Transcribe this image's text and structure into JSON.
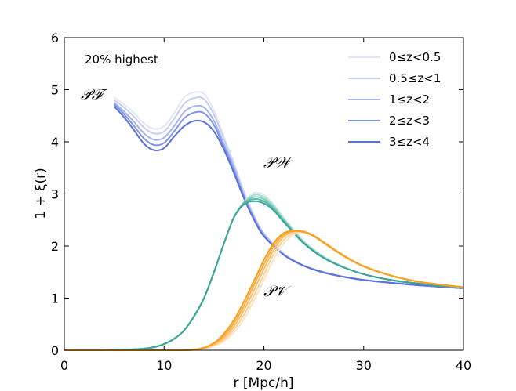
{
  "chart_data": {
    "type": "line",
    "xlabel": "r [Mpc/h]",
    "ylabel": "1 + ξ(r)",
    "xlim": [
      0,
      40
    ],
    "ylim": [
      0,
      6
    ],
    "x_ticks": [
      0,
      10,
      20,
      30,
      40
    ],
    "y_ticks": [
      0,
      1,
      2,
      3,
      4,
      5,
      6
    ],
    "annotation": "20% highest",
    "legend_position": "top-right",
    "legend": [
      {
        "label": "0≤z<0.5",
        "color": "#e3e7f7"
      },
      {
        "label": "0.5≤z<1",
        "color": "#c6cff1"
      },
      {
        "label": "1≤z<2",
        "color": "#a6b3ec"
      },
      {
        "label": "2≤z<3",
        "color": "#8195e5"
      },
      {
        "label": "3≤z<4",
        "color": "#5a70dc"
      }
    ],
    "curve_labels": [
      {
        "text": "𝒫ℱ",
        "color": "#6279db"
      },
      {
        "text": "𝒫𝒲",
        "color": "#3aa598"
      },
      {
        "text": "𝒫𝒱",
        "color": "#f6a11c"
      }
    ],
    "series": [
      {
        "name": "PF 0≤z<0.5",
        "group": "PF",
        "color": "#e3e7f7",
        "x": [
          5,
          6,
          7,
          8,
          9,
          10,
          11,
          12,
          13,
          14,
          15,
          16,
          17,
          18,
          19,
          20,
          22,
          24,
          26,
          28,
          30,
          33,
          36,
          40
        ],
        "y": [
          4.85,
          4.72,
          4.55,
          4.35,
          4.25,
          4.3,
          4.55,
          4.85,
          4.95,
          4.92,
          4.6,
          4.1,
          3.6,
          3.05,
          2.6,
          2.25,
          1.85,
          1.63,
          1.5,
          1.41,
          1.35,
          1.29,
          1.24,
          1.19
        ]
      },
      {
        "name": "PF 0.5≤z<1",
        "group": "PF",
        "color": "#c6cff1",
        "x": [
          5,
          6,
          7,
          8,
          9,
          10,
          11,
          12,
          13,
          14,
          15,
          16,
          17,
          18,
          19,
          20,
          22,
          24,
          26,
          28,
          30,
          33,
          36,
          40
        ],
        "y": [
          4.8,
          4.66,
          4.48,
          4.27,
          4.16,
          4.2,
          4.44,
          4.73,
          4.84,
          4.82,
          4.52,
          4.05,
          3.56,
          3.02,
          2.58,
          2.24,
          1.85,
          1.63,
          1.5,
          1.41,
          1.35,
          1.29,
          1.24,
          1.19
        ]
      },
      {
        "name": "PF 1≤z<2",
        "group": "PF",
        "color": "#a6b3ec",
        "x": [
          5,
          6,
          7,
          8,
          9,
          10,
          11,
          12,
          13,
          14,
          15,
          16,
          17,
          18,
          19,
          20,
          22,
          24,
          26,
          28,
          30,
          33,
          36,
          40
        ],
        "y": [
          4.75,
          4.58,
          4.38,
          4.16,
          4.04,
          4.08,
          4.3,
          4.57,
          4.68,
          4.66,
          4.4,
          3.96,
          3.5,
          2.98,
          2.55,
          2.22,
          1.84,
          1.62,
          1.5,
          1.41,
          1.35,
          1.29,
          1.24,
          1.19
        ]
      },
      {
        "name": "PF 2≤z<3",
        "group": "PF",
        "color": "#8195e5",
        "x": [
          5,
          6,
          7,
          8,
          9,
          10,
          11,
          12,
          13,
          14,
          15,
          16,
          17,
          18,
          19,
          20,
          22,
          24,
          26,
          28,
          30,
          33,
          36,
          40
        ],
        "y": [
          4.72,
          4.53,
          4.3,
          4.06,
          3.94,
          3.98,
          4.2,
          4.45,
          4.56,
          4.55,
          4.32,
          3.9,
          3.45,
          2.95,
          2.53,
          2.2,
          1.83,
          1.62,
          1.49,
          1.41,
          1.35,
          1.29,
          1.24,
          1.19
        ]
      },
      {
        "name": "PF 3≤z<4",
        "group": "PF",
        "color": "#5a70dc",
        "x": [
          5,
          6,
          7,
          8,
          9,
          10,
          11,
          12,
          13,
          14,
          15,
          16,
          17,
          18,
          19,
          20,
          22,
          24,
          26,
          28,
          30,
          33,
          36,
          40
        ],
        "y": [
          4.68,
          4.47,
          4.22,
          3.96,
          3.84,
          3.88,
          4.1,
          4.3,
          4.4,
          4.38,
          4.2,
          3.85,
          3.4,
          2.92,
          2.51,
          2.19,
          1.83,
          1.62,
          1.49,
          1.41,
          1.35,
          1.29,
          1.24,
          1.19
        ]
      },
      {
        "name": "PW 0≤z<0.5",
        "group": "PW",
        "color": "#d6eeeb",
        "x": [
          0,
          4,
          6,
          8,
          9,
          10,
          11,
          12,
          13,
          14,
          15,
          16,
          17,
          18,
          19,
          20,
          21,
          22,
          24,
          26,
          28,
          30,
          33,
          36,
          40
        ],
        "y": [
          0,
          0,
          0.01,
          0.03,
          0.06,
          0.12,
          0.22,
          0.38,
          0.65,
          1.0,
          1.5,
          2.05,
          2.55,
          2.85,
          3.02,
          2.98,
          2.8,
          2.55,
          2.1,
          1.8,
          1.6,
          1.46,
          1.34,
          1.27,
          1.2
        ]
      },
      {
        "name": "PW 0.5≤z<1",
        "group": "PW",
        "color": "#acdcd5",
        "x": [
          0,
          4,
          6,
          8,
          9,
          10,
          11,
          12,
          13,
          14,
          15,
          16,
          17,
          18,
          19,
          20,
          21,
          22,
          24,
          26,
          28,
          30,
          33,
          36,
          40
        ],
        "y": [
          0,
          0,
          0.01,
          0.03,
          0.06,
          0.12,
          0.22,
          0.38,
          0.65,
          1.0,
          1.5,
          2.05,
          2.55,
          2.84,
          2.98,
          2.94,
          2.77,
          2.52,
          2.08,
          1.79,
          1.6,
          1.46,
          1.34,
          1.27,
          1.2
        ]
      },
      {
        "name": "PW 1≤z<2",
        "group": "PW",
        "color": "#82cbc0",
        "x": [
          0,
          4,
          6,
          8,
          9,
          10,
          11,
          12,
          13,
          14,
          15,
          16,
          17,
          18,
          19,
          20,
          21,
          22,
          24,
          26,
          28,
          30,
          33,
          36,
          40
        ],
        "y": [
          0,
          0,
          0.01,
          0.03,
          0.06,
          0.12,
          0.22,
          0.38,
          0.65,
          1.0,
          1.5,
          2.05,
          2.55,
          2.83,
          2.94,
          2.9,
          2.74,
          2.5,
          2.07,
          1.78,
          1.59,
          1.46,
          1.34,
          1.27,
          1.2
        ]
      },
      {
        "name": "PW 2≤z<3",
        "group": "PW",
        "color": "#58b8aa",
        "x": [
          0,
          4,
          6,
          8,
          9,
          10,
          11,
          12,
          13,
          14,
          15,
          16,
          17,
          18,
          19,
          20,
          21,
          22,
          24,
          26,
          28,
          30,
          33,
          36,
          40
        ],
        "y": [
          0,
          0,
          0.01,
          0.03,
          0.06,
          0.12,
          0.22,
          0.38,
          0.65,
          1.0,
          1.5,
          2.05,
          2.55,
          2.82,
          2.9,
          2.86,
          2.71,
          2.48,
          2.06,
          1.77,
          1.59,
          1.46,
          1.34,
          1.27,
          1.2
        ]
      },
      {
        "name": "PW 3≤z<4",
        "group": "PW",
        "color": "#3aa598",
        "x": [
          0,
          4,
          6,
          8,
          9,
          10,
          11,
          12,
          13,
          14,
          15,
          16,
          17,
          18,
          19,
          20,
          21,
          22,
          24,
          26,
          28,
          30,
          33,
          36,
          40
        ],
        "y": [
          0,
          0,
          0.01,
          0.03,
          0.06,
          0.12,
          0.22,
          0.38,
          0.65,
          1.0,
          1.5,
          2.05,
          2.55,
          2.8,
          2.86,
          2.82,
          2.68,
          2.46,
          2.05,
          1.77,
          1.59,
          1.46,
          1.34,
          1.27,
          1.2
        ]
      },
      {
        "name": "PV 0≤z<0.5",
        "group": "PV",
        "color": "#fde6c4",
        "x": [
          0,
          10,
          12,
          13,
          14,
          15,
          16,
          17,
          18,
          19,
          20,
          21,
          22,
          23,
          24,
          25,
          26,
          28,
          30,
          33,
          36,
          40
        ],
        "y": [
          0,
          0,
          0,
          0.01,
          0.03,
          0.08,
          0.17,
          0.34,
          0.6,
          0.95,
          1.35,
          1.75,
          2.05,
          2.22,
          2.26,
          2.2,
          2.08,
          1.83,
          1.62,
          1.42,
          1.3,
          1.21
        ]
      },
      {
        "name": "PV 0.5≤z<1",
        "group": "PV",
        "color": "#fcd49a",
        "x": [
          0,
          10,
          12,
          13,
          14,
          15,
          16,
          17,
          18,
          19,
          20,
          21,
          22,
          23,
          24,
          25,
          26,
          28,
          30,
          33,
          36,
          40
        ],
        "y": [
          0,
          0,
          0,
          0.01,
          0.04,
          0.1,
          0.2,
          0.4,
          0.68,
          1.05,
          1.45,
          1.85,
          2.12,
          2.25,
          2.27,
          2.2,
          2.08,
          1.82,
          1.62,
          1.42,
          1.3,
          1.21
        ]
      },
      {
        "name": "PV 1≤z<2",
        "group": "PV",
        "color": "#fabf6d",
        "x": [
          0,
          10,
          12,
          13,
          14,
          15,
          16,
          17,
          18,
          19,
          20,
          21,
          22,
          23,
          24,
          25,
          26,
          28,
          30,
          33,
          36,
          40
        ],
        "y": [
          0,
          0,
          0,
          0.01,
          0.04,
          0.11,
          0.24,
          0.46,
          0.77,
          1.15,
          1.56,
          1.93,
          2.18,
          2.28,
          2.28,
          2.2,
          2.07,
          1.82,
          1.61,
          1.42,
          1.3,
          1.21
        ]
      },
      {
        "name": "PV 2≤z<3",
        "group": "PV",
        "color": "#f8ae45",
        "x": [
          0,
          10,
          12,
          13,
          14,
          15,
          16,
          17,
          18,
          19,
          20,
          21,
          22,
          23,
          24,
          25,
          26,
          28,
          30,
          33,
          36,
          40
        ],
        "y": [
          0,
          0,
          0,
          0.01,
          0.05,
          0.13,
          0.28,
          0.52,
          0.85,
          1.25,
          1.65,
          2.0,
          2.22,
          2.29,
          2.28,
          2.2,
          2.07,
          1.81,
          1.61,
          1.42,
          1.3,
          1.21
        ]
      },
      {
        "name": "PV 3≤z<4",
        "group": "PV",
        "color": "#f6a11c",
        "x": [
          0,
          10,
          12,
          13,
          14,
          15,
          16,
          17,
          18,
          19,
          20,
          21,
          22,
          23,
          24,
          25,
          26,
          28,
          30,
          33,
          36,
          40
        ],
        "y": [
          0,
          0,
          0,
          0.01,
          0.05,
          0.14,
          0.32,
          0.58,
          0.93,
          1.33,
          1.73,
          2.06,
          2.25,
          2.29,
          2.27,
          2.19,
          2.06,
          1.81,
          1.61,
          1.42,
          1.3,
          1.21
        ]
      }
    ]
  }
}
